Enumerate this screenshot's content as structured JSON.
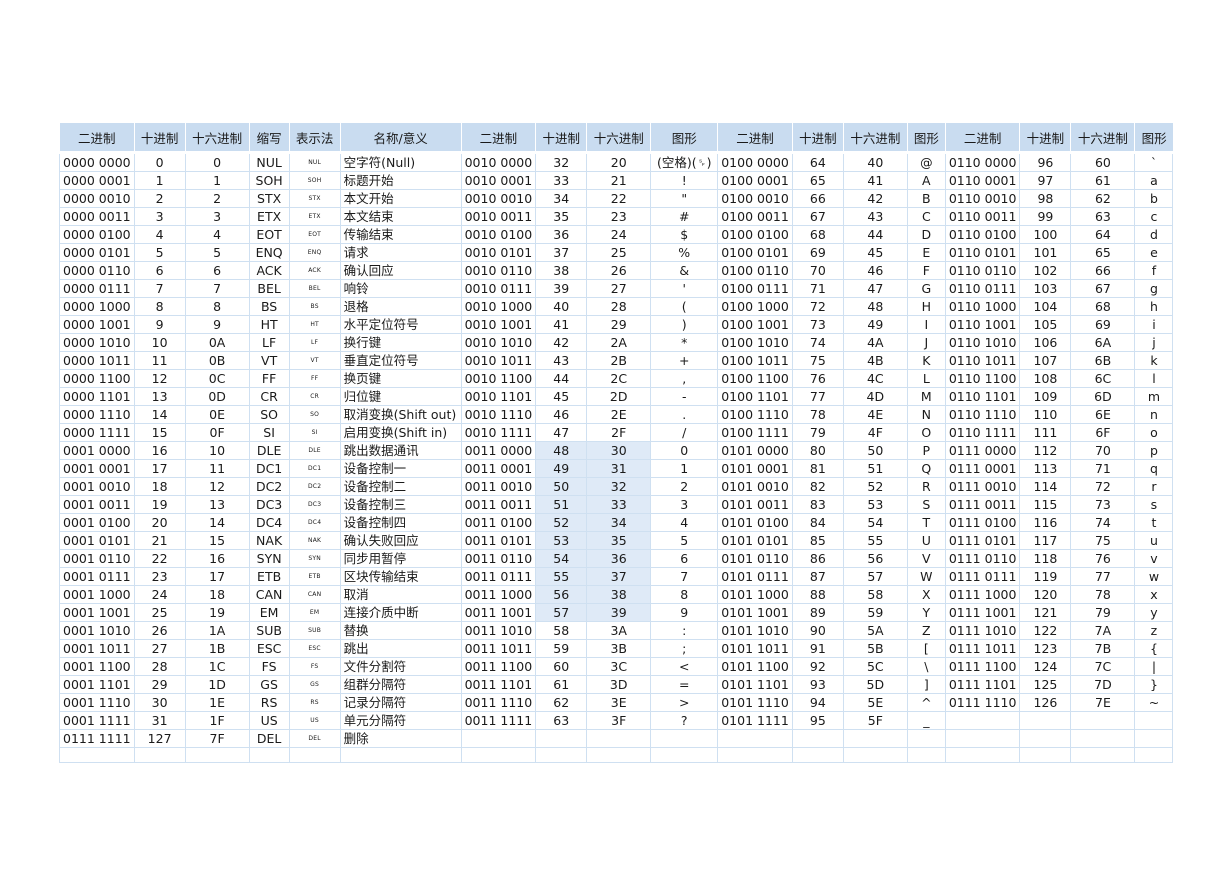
{
  "table": {
    "headers": [
      "二进制",
      "十进制",
      "十六进制",
      "缩写",
      "表示法",
      "名称/意义",
      "二进制",
      "十进制",
      "十六进制",
      "图形",
      "二进制",
      "十进制",
      "十六进制",
      "图形",
      "二进制",
      "十进制",
      "十六进制",
      "图形"
    ],
    "rows": [
      [
        "0000 0000",
        "0",
        "0",
        "NUL",
        "NUL",
        "空字符(Null)",
        "0010 0000",
        "32",
        "20",
        "(空格)(␠)",
        "0100 0000",
        "64",
        "40",
        "@",
        "0110 0000",
        "96",
        "60",
        "`"
      ],
      [
        "0000 0001",
        "1",
        "1",
        "SOH",
        "SOH",
        "标题开始",
        "0010 0001",
        "33",
        "21",
        "!",
        "0100 0001",
        "65",
        "41",
        "A",
        "0110 0001",
        "97",
        "61",
        "a"
      ],
      [
        "0000 0010",
        "2",
        "2",
        "STX",
        "STX",
        "本文开始",
        "0010 0010",
        "34",
        "22",
        "\"",
        "0100 0010",
        "66",
        "42",
        "B",
        "0110 0010",
        "98",
        "62",
        "b"
      ],
      [
        "0000 0011",
        "3",
        "3",
        "ETX",
        "ETX",
        "本文结束",
        "0010 0011",
        "35",
        "23",
        "#",
        "0100 0011",
        "67",
        "43",
        "C",
        "0110 0011",
        "99",
        "63",
        "c"
      ],
      [
        "0000 0100",
        "4",
        "4",
        "EOT",
        "EOT",
        "传输结束",
        "0010 0100",
        "36",
        "24",
        "$",
        "0100 0100",
        "68",
        "44",
        "D",
        "0110 0100",
        "100",
        "64",
        "d"
      ],
      [
        "0000 0101",
        "5",
        "5",
        "ENQ",
        "ENQ",
        "请求",
        "0010 0101",
        "37",
        "25",
        "%",
        "0100 0101",
        "69",
        "45",
        "E",
        "0110 0101",
        "101",
        "65",
        "e"
      ],
      [
        "0000 0110",
        "6",
        "6",
        "ACK",
        "ACK",
        "确认回应",
        "0010 0110",
        "38",
        "26",
        "&",
        "0100 0110",
        "70",
        "46",
        "F",
        "0110 0110",
        "102",
        "66",
        "f"
      ],
      [
        "0000 0111",
        "7",
        "7",
        "BEL",
        "BEL",
        "响铃",
        "0010 0111",
        "39",
        "27",
        "'",
        "0100 0111",
        "71",
        "47",
        "G",
        "0110 0111",
        "103",
        "67",
        "g"
      ],
      [
        "0000 1000",
        "8",
        "8",
        "BS",
        "BS",
        "退格",
        "0010 1000",
        "40",
        "28",
        "(",
        "0100 1000",
        "72",
        "48",
        "H",
        "0110 1000",
        "104",
        "68",
        "h"
      ],
      [
        "0000 1001",
        "9",
        "9",
        "HT",
        "HT",
        "水平定位符号",
        "0010 1001",
        "41",
        "29",
        ")",
        "0100 1001",
        "73",
        "49",
        "I",
        "0110 1001",
        "105",
        "69",
        "i"
      ],
      [
        "0000 1010",
        "10",
        "0A",
        "LF",
        "LF",
        "换行键",
        "0010 1010",
        "42",
        "2A",
        "*",
        "0100 1010",
        "74",
        "4A",
        "J",
        "0110 1010",
        "106",
        "6A",
        "j"
      ],
      [
        "0000 1011",
        "11",
        "0B",
        "VT",
        "VT",
        "垂直定位符号",
        "0010 1011",
        "43",
        "2B",
        "+",
        "0100 1011",
        "75",
        "4B",
        "K",
        "0110 1011",
        "107",
        "6B",
        "k"
      ],
      [
        "0000 1100",
        "12",
        "0C",
        "FF",
        "FF",
        "换页键",
        "0010 1100",
        "44",
        "2C",
        ",",
        "0100 1100",
        "76",
        "4C",
        "L",
        "0110 1100",
        "108",
        "6C",
        "l"
      ],
      [
        "0000 1101",
        "13",
        "0D",
        "CR",
        "CR",
        "归位键",
        "0010 1101",
        "45",
        "2D",
        "-",
        "0100 1101",
        "77",
        "4D",
        "M",
        "0110 1101",
        "109",
        "6D",
        "m"
      ],
      [
        "0000 1110",
        "14",
        "0E",
        "SO",
        "SO",
        "取消变换(Shift out)",
        "0010 1110",
        "46",
        "2E",
        ".",
        "0100 1110",
        "78",
        "4E",
        "N",
        "0110 1110",
        "110",
        "6E",
        "n"
      ],
      [
        "0000 1111",
        "15",
        "0F",
        "SI",
        "SI",
        "启用变换(Shift in)",
        "0010 1111",
        "47",
        "2F",
        "/",
        "0100 1111",
        "79",
        "4F",
        "O",
        "0110 1111",
        "111",
        "6F",
        "o"
      ],
      [
        "0001 0000",
        "16",
        "10",
        "DLE",
        "DLE",
        "跳出数据通讯",
        "0011 0000",
        "48",
        "30",
        "0",
        "0101 0000",
        "80",
        "50",
        "P",
        "0111 0000",
        "112",
        "70",
        "p"
      ],
      [
        "0001 0001",
        "17",
        "11",
        "DC1",
        "DC1",
        "设备控制一",
        "0011 0001",
        "49",
        "31",
        "1",
        "0101 0001",
        "81",
        "51",
        "Q",
        "0111 0001",
        "113",
        "71",
        "q"
      ],
      [
        "0001 0010",
        "18",
        "12",
        "DC2",
        "DC2",
        "设备控制二",
        "0011 0010",
        "50",
        "32",
        "2",
        "0101 0010",
        "82",
        "52",
        "R",
        "0111 0010",
        "114",
        "72",
        "r"
      ],
      [
        "0001 0011",
        "19",
        "13",
        "DC3",
        "DC3",
        "设备控制三",
        "0011 0011",
        "51",
        "33",
        "3",
        "0101 0011",
        "83",
        "53",
        "S",
        "0111 0011",
        "115",
        "73",
        "s"
      ],
      [
        "0001 0100",
        "20",
        "14",
        "DC4",
        "DC4",
        "设备控制四",
        "0011 0100",
        "52",
        "34",
        "4",
        "0101 0100",
        "84",
        "54",
        "T",
        "0111 0100",
        "116",
        "74",
        "t"
      ],
      [
        "0001 0101",
        "21",
        "15",
        "NAK",
        "NAK",
        "确认失败回应",
        "0011 0101",
        "53",
        "35",
        "5",
        "0101 0101",
        "85",
        "55",
        "U",
        "0111 0101",
        "117",
        "75",
        "u"
      ],
      [
        "0001 0110",
        "22",
        "16",
        "SYN",
        "SYN",
        "同步用暂停",
        "0011 0110",
        "54",
        "36",
        "6",
        "0101 0110",
        "86",
        "56",
        "V",
        "0111 0110",
        "118",
        "76",
        "v"
      ],
      [
        "0001 0111",
        "23",
        "17",
        "ETB",
        "ETB",
        "区块传输结束",
        "0011 0111",
        "55",
        "37",
        "7",
        "0101 0111",
        "87",
        "57",
        "W",
        "0111 0111",
        "119",
        "77",
        "w"
      ],
      [
        "0001 1000",
        "24",
        "18",
        "CAN",
        "CAN",
        "取消",
        "0011 1000",
        "56",
        "38",
        "8",
        "0101 1000",
        "88",
        "58",
        "X",
        "0111 1000",
        "120",
        "78",
        "x"
      ],
      [
        "0001 1001",
        "25",
        "19",
        "EM",
        "EM",
        "连接介质中断",
        "0011 1001",
        "57",
        "39",
        "9",
        "0101 1001",
        "89",
        "59",
        "Y",
        "0111 1001",
        "121",
        "79",
        "y"
      ],
      [
        "0001 1010",
        "26",
        "1A",
        "SUB",
        "SUB",
        "替换",
        "0011 1010",
        "58",
        "3A",
        ":",
        "0101 1010",
        "90",
        "5A",
        "Z",
        "0111 1010",
        "122",
        "7A",
        "z"
      ],
      [
        "0001 1011",
        "27",
        "1B",
        "ESC",
        "ESC",
        "跳出",
        "0011 1011",
        "59",
        "3B",
        ";",
        "0101 1011",
        "91",
        "5B",
        "[",
        "0111 1011",
        "123",
        "7B",
        "{"
      ],
      [
        "0001 1100",
        "28",
        "1C",
        "FS",
        "FS",
        "文件分割符",
        "0011 1100",
        "60",
        "3C",
        "<",
        "0101 1100",
        "92",
        "5C",
        "\\",
        "0111 1100",
        "124",
        "7C",
        "|"
      ],
      [
        "0001 1101",
        "29",
        "1D",
        "GS",
        "GS",
        "组群分隔符",
        "0011 1101",
        "61",
        "3D",
        "=",
        "0101 1101",
        "93",
        "5D",
        "]",
        "0111 1101",
        "125",
        "7D",
        "}"
      ],
      [
        "0001 1110",
        "30",
        "1E",
        "RS",
        "RS",
        "记录分隔符",
        "0011 1110",
        "62",
        "3E",
        ">",
        "0101 1110",
        "94",
        "5E",
        "^",
        "0111 1110",
        "126",
        "7E",
        "~"
      ],
      [
        "0001 1111",
        "31",
        "1F",
        "US",
        "US",
        "单元分隔符",
        "0011 1111",
        "63",
        "3F",
        "?",
        "0101 1111",
        "95",
        "5F",
        "_",
        "",
        "",
        "",
        ""
      ],
      [
        "0111 1111",
        "127",
        "7F",
        "DEL",
        "DEL",
        "删除",
        "",
        "",
        "",
        "",
        "",
        "",
        "",
        "",
        "",
        "",
        "",
        ""
      ]
    ]
  }
}
